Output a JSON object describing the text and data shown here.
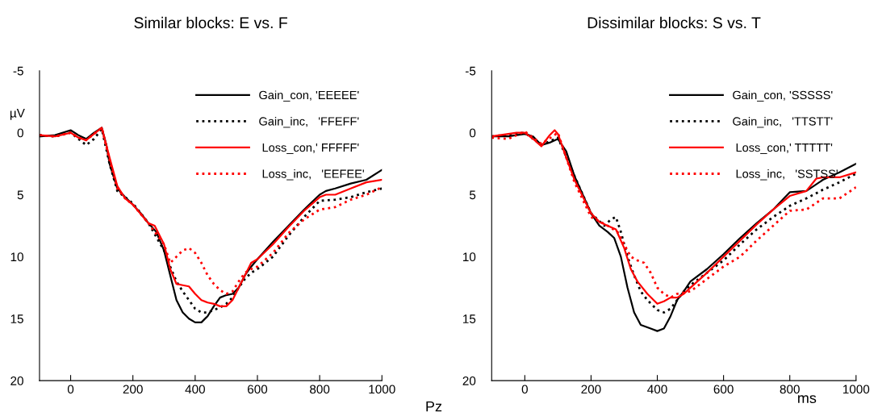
{
  "chart_data": [
    {
      "type": "line",
      "title": "Similar blocks: E vs. F",
      "ylabel": "µV",
      "annotations": [
        "Pz"
      ],
      "xlim": [
        -100,
        1000
      ],
      "xticks": [
        0,
        200,
        400,
        600,
        800,
        1000
      ],
      "ylim": [
        20,
        -5
      ],
      "yticks": [
        -5,
        0,
        5,
        10,
        15,
        20
      ],
      "grid": false,
      "legend": "top right",
      "marker": "none",
      "series": [
        {
          "name": "Gain_con, 'EEEEE'",
          "color": "#000000",
          "line_style": "solid",
          "x": [
            -100,
            -50,
            0,
            25,
            50,
            75,
            100,
            115,
            125,
            150,
            175,
            200,
            225,
            250,
            275,
            300,
            320,
            340,
            360,
            380,
            400,
            420,
            440,
            460,
            480,
            500,
            520,
            540,
            560,
            580,
            600,
            650,
            700,
            750,
            800,
            820,
            850,
            900,
            950,
            1000
          ],
          "values": [
            0.3,
            0.2,
            -0.2,
            0.2,
            0.5,
            0,
            -0.4,
            1,
            2.5,
            4.5,
            5.2,
            5.8,
            6.5,
            7.3,
            8,
            9.5,
            11.5,
            13.5,
            14.5,
            15,
            15.3,
            15.3,
            14.8,
            14,
            13.3,
            13.1,
            13,
            12.5,
            11.5,
            10.8,
            10.2,
            8.8,
            7.5,
            6.2,
            5,
            4.7,
            4.5,
            4.1,
            3.8,
            3.0
          ]
        },
        {
          "name": "Gain_inc,   'FFEFF'",
          "color": "#000000",
          "line_style": "dotted",
          "x": [
            -100,
            -50,
            0,
            25,
            50,
            75,
            100,
            125,
            150,
            175,
            200,
            250,
            300,
            320,
            340,
            360,
            380,
            400,
            420,
            440,
            460,
            480,
            500,
            520,
            540,
            560,
            580,
            600,
            650,
            700,
            750,
            800,
            850,
            900,
            950,
            1000
          ],
          "values": [
            0.2,
            0.3,
            0,
            0.5,
            1.0,
            0.5,
            -0.3,
            2.5,
            4.7,
            5.2,
            5.7,
            7.3,
            9.5,
            10.8,
            12,
            12.8,
            13.5,
            14.2,
            14.5,
            14.5,
            14.3,
            14.1,
            13.8,
            13.3,
            12.5,
            11.8,
            11.3,
            11,
            10,
            8.3,
            6.8,
            5.5,
            5.4,
            5.2,
            4.8,
            4.5
          ]
        },
        {
          "name": " Loss_con,' FFFFF'",
          "color": "#ff0000",
          "line_style": "solid",
          "x": [
            -100,
            -50,
            0,
            25,
            50,
            75,
            100,
            125,
            150,
            175,
            200,
            250,
            270,
            300,
            320,
            340,
            360,
            380,
            400,
            420,
            440,
            460,
            480,
            500,
            520,
            540,
            560,
            580,
            600,
            650,
            700,
            750,
            800,
            820,
            850,
            900,
            950,
            1000
          ],
          "values": [
            0.2,
            0.3,
            0,
            0.4,
            0.6,
            0.1,
            -0.4,
            2,
            4.3,
            5.3,
            5.8,
            7.3,
            7.5,
            9,
            11,
            12.2,
            12.3,
            12.4,
            13,
            13.5,
            13.7,
            13.8,
            14,
            14,
            13.5,
            12.5,
            11.5,
            10.5,
            10.2,
            9,
            7.6,
            6.3,
            5.2,
            5.0,
            5.0,
            4.5,
            4.0,
            3.8
          ]
        },
        {
          "name": " Loss_inc,   'EEFEE'",
          "color": "#ff0000",
          "line_style": "dotted",
          "x": [
            -100,
            -50,
            0,
            25,
            50,
            75,
            100,
            125,
            150,
            175,
            200,
            250,
            300,
            320,
            340,
            360,
            380,
            400,
            420,
            440,
            460,
            480,
            500,
            520,
            540,
            560,
            580,
            600,
            650,
            700,
            750,
            800,
            850,
            900,
            950,
            1000
          ],
          "values": [
            0.2,
            0.3,
            0,
            0.4,
            0.6,
            0.1,
            -0.4,
            2.2,
            4.5,
            5.3,
            5.8,
            7.3,
            9,
            10.5,
            10,
            9.5,
            9.3,
            9.7,
            10.5,
            11.5,
            12.2,
            12.7,
            13,
            12.8,
            12,
            11.3,
            11,
            10.8,
            9.7,
            8.1,
            7,
            6.2,
            6.0,
            5.4,
            5.0,
            4.4
          ]
        }
      ]
    },
    {
      "type": "line",
      "title": "Dissimilar blocks: S vs. T",
      "xlabel": "ms",
      "xlim": [
        -100,
        1000
      ],
      "xticks": [
        0,
        200,
        400,
        600,
        800,
        1000
      ],
      "ylim": [
        20,
        -5
      ],
      "yticks": [
        -5,
        0,
        5,
        10,
        15,
        20
      ],
      "grid": false,
      "legend": "top right",
      "marker": "none",
      "series": [
        {
          "name": "Gain_con, 'SSSSS'",
          "color": "#000000",
          "line_style": "solid",
          "x": [
            -100,
            -50,
            0,
            25,
            50,
            75,
            100,
            125,
            150,
            175,
            200,
            225,
            250,
            270,
            290,
            310,
            330,
            350,
            380,
            400,
            420,
            440,
            460,
            480,
            500,
            550,
            600,
            650,
            700,
            750,
            800,
            850,
            900,
            950,
            1000
          ],
          "values": [
            0.3,
            0.3,
            0.1,
            0.3,
            1,
            0.8,
            0.5,
            1.5,
            3.5,
            5,
            6.5,
            7.5,
            8,
            8.5,
            10,
            12.5,
            14.5,
            15.5,
            15.8,
            16,
            15.8,
            14.8,
            13.5,
            12.8,
            12,
            11,
            9.8,
            8.5,
            7.3,
            6.2,
            4.8,
            4.7,
            3.8,
            3.2,
            2.5
          ]
        },
        {
          "name": "Gain_inc,   'TTSTT'",
          "color": "#000000",
          "line_style": "dotted",
          "x": [
            -100,
            0,
            50,
            100,
            150,
            200,
            240,
            260,
            275,
            290,
            310,
            330,
            350,
            370,
            400,
            420,
            440,
            460,
            480,
            500,
            550,
            600,
            650,
            700,
            750,
            800,
            850,
            900,
            950,
            1000
          ],
          "values": [
            0.3,
            0,
            1,
            0.4,
            3.5,
            6.5,
            7.5,
            7,
            6.8,
            8,
            10,
            11.5,
            12.8,
            13.5,
            14.3,
            14.5,
            14.2,
            13.5,
            12.8,
            12.3,
            11.3,
            10.3,
            9,
            7.8,
            6.8,
            5.9,
            5.3,
            4.6,
            4.0,
            3.3
          ]
        },
        {
          "name": " Loss_con,' TTTTT'",
          "color": "#ff0000",
          "line_style": "solid",
          "x": [
            -100,
            -25,
            0,
            25,
            50,
            75,
            90,
            100,
            125,
            150,
            200,
            225,
            250,
            275,
            300,
            320,
            340,
            370,
            400,
            420,
            440,
            460,
            480,
            500,
            550,
            600,
            650,
            700,
            750,
            800,
            850,
            880,
            900,
            950,
            1000
          ],
          "values": [
            0.3,
            0,
            0,
            0.5,
            1.1,
            0.2,
            -0.2,
            0.1,
            2,
            3.8,
            6.5,
            7.2,
            7.5,
            7.8,
            9.3,
            11,
            12,
            13,
            13.8,
            13.6,
            13.3,
            13.3,
            13,
            12.5,
            11.3,
            10,
            8.7,
            7.4,
            6.2,
            5.1,
            4.7,
            3.7,
            3.6,
            3.6,
            3.2
          ]
        },
        {
          "name": " Loss_inc,   'SSTSS'",
          "color": "#ff0000",
          "line_style": "dotted",
          "x": [
            -100,
            -50,
            0,
            50,
            100,
            125,
            150,
            200,
            250,
            280,
            300,
            320,
            340,
            360,
            380,
            400,
            420,
            440,
            460,
            500,
            550,
            600,
            650,
            700,
            750,
            800,
            850,
            900,
            950,
            1000
          ],
          "values": [
            0.4,
            0.5,
            -0.1,
            0.9,
            0,
            2,
            4,
            6.8,
            7.5,
            8,
            9,
            10,
            10.3,
            10.5,
            11.3,
            12.5,
            13,
            13.3,
            13,
            12.8,
            11.8,
            10.8,
            10,
            8.7,
            7.5,
            6.3,
            6.2,
            5.3,
            5.3,
            4.4
          ]
        }
      ]
    }
  ]
}
